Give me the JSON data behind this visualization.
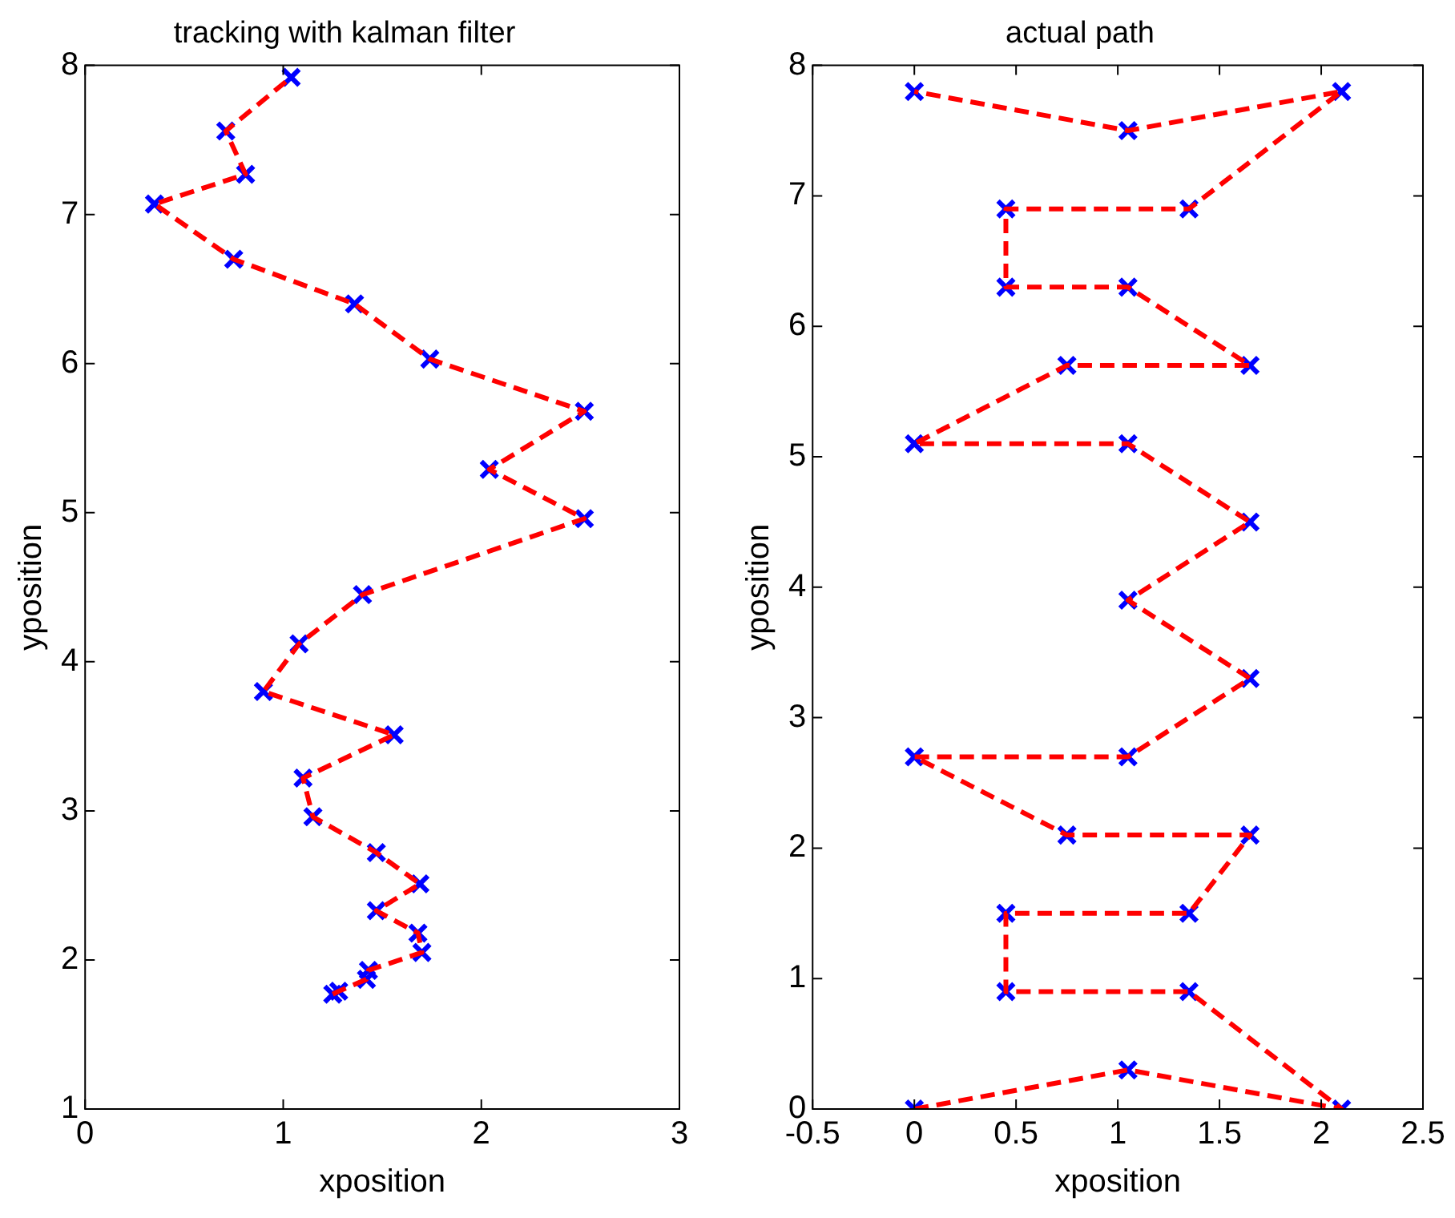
{
  "chart_data": [
    {
      "type": "line",
      "title": "tracking with kalman filter",
      "xlabel": "xposition",
      "ylabel": "yposition",
      "xlim": [
        0,
        3
      ],
      "xticks": [
        0,
        1,
        2,
        3
      ],
      "ylim": [
        1,
        8
      ],
      "yticks": [
        1,
        2,
        3,
        4,
        5,
        6,
        7,
        8
      ],
      "legend": false,
      "series": [
        {
          "color": "#ff0000",
          "line_style": "dashed",
          "marker": "none",
          "x": [
            1.25,
            1.28,
            1.42,
            1.43,
            1.7,
            1.68,
            1.47,
            1.69,
            1.47,
            1.15,
            1.1,
            1.56,
            0.9,
            1.08,
            1.4,
            2.52,
            2.04,
            2.52,
            1.74,
            1.36,
            0.75,
            0.35,
            0.81,
            0.71,
            1.04
          ],
          "values": [
            1.77,
            1.79,
            1.87,
            1.93,
            2.05,
            2.18,
            2.33,
            2.51,
            2.72,
            2.96,
            3.22,
            3.51,
            3.8,
            4.12,
            4.45,
            4.96,
            5.29,
            5.68,
            6.03,
            6.4,
            6.7,
            7.07,
            7.27,
            7.56,
            7.92
          ]
        },
        {
          "type": "scatter",
          "color": "#0000ff",
          "marker": "cross",
          "x": [
            1.25,
            1.28,
            1.42,
            1.43,
            1.7,
            1.68,
            1.47,
            1.69,
            1.47,
            1.15,
            1.1,
            1.56,
            0.9,
            1.08,
            1.4,
            2.52,
            2.04,
            2.52,
            1.74,
            1.36,
            0.75,
            0.35,
            0.81,
            0.71,
            1.04
          ],
          "values": [
            1.77,
            1.79,
            1.87,
            1.93,
            2.05,
            2.18,
            2.33,
            2.51,
            2.72,
            2.96,
            3.22,
            3.51,
            3.8,
            4.12,
            4.45,
            4.96,
            5.29,
            5.68,
            6.03,
            6.4,
            6.7,
            7.07,
            7.27,
            7.56,
            7.92
          ]
        }
      ]
    },
    {
      "type": "line",
      "title": "actual path",
      "xlabel": "xposition",
      "ylabel": "yposition",
      "xlim": [
        -0.5,
        2.5
      ],
      "xticks": [
        -0.5,
        0,
        0.5,
        1,
        1.5,
        2,
        2.5
      ],
      "ylim": [
        0,
        8
      ],
      "yticks": [
        0,
        1,
        2,
        3,
        4,
        5,
        6,
        7,
        8
      ],
      "legend": false,
      "series": [
        {
          "color": "#ff0000",
          "line_style": "dashed",
          "marker": "none",
          "x": [
            0,
            1.05,
            2.1,
            1.35,
            0.45,
            0.45,
            1.35,
            1.65,
            0.75,
            0,
            1.05,
            1.65,
            1.05,
            1.65,
            1.05,
            0,
            0.75,
            1.65,
            1.05,
            0.45,
            0.45,
            1.35,
            2.1,
            1.05,
            0
          ],
          "values": [
            0,
            0.3,
            0,
            0.9,
            0.9,
            1.5,
            1.5,
            2.1,
            2.1,
            2.7,
            2.7,
            3.3,
            3.9,
            4.5,
            5.1,
            5.1,
            5.7,
            5.7,
            6.3,
            6.3,
            6.9,
            6.9,
            7.8,
            7.5,
            7.8
          ]
        },
        {
          "type": "scatter",
          "color": "#0000ff",
          "marker": "cross",
          "x": [
            0,
            1.05,
            2.1,
            1.35,
            0.45,
            0.45,
            1.35,
            1.65,
            0.75,
            0,
            1.05,
            1.65,
            1.05,
            1.65,
            1.05,
            0,
            0.75,
            1.65,
            1.05,
            0.45,
            0.45,
            1.35,
            2.1,
            1.05,
            0
          ],
          "values": [
            0,
            0.3,
            0,
            0.9,
            0.9,
            1.5,
            1.5,
            2.1,
            2.1,
            2.7,
            2.7,
            3.3,
            3.9,
            4.5,
            5.1,
            5.1,
            5.7,
            5.7,
            6.3,
            6.3,
            6.9,
            6.9,
            7.8,
            7.5,
            7.8
          ]
        }
      ]
    }
  ]
}
